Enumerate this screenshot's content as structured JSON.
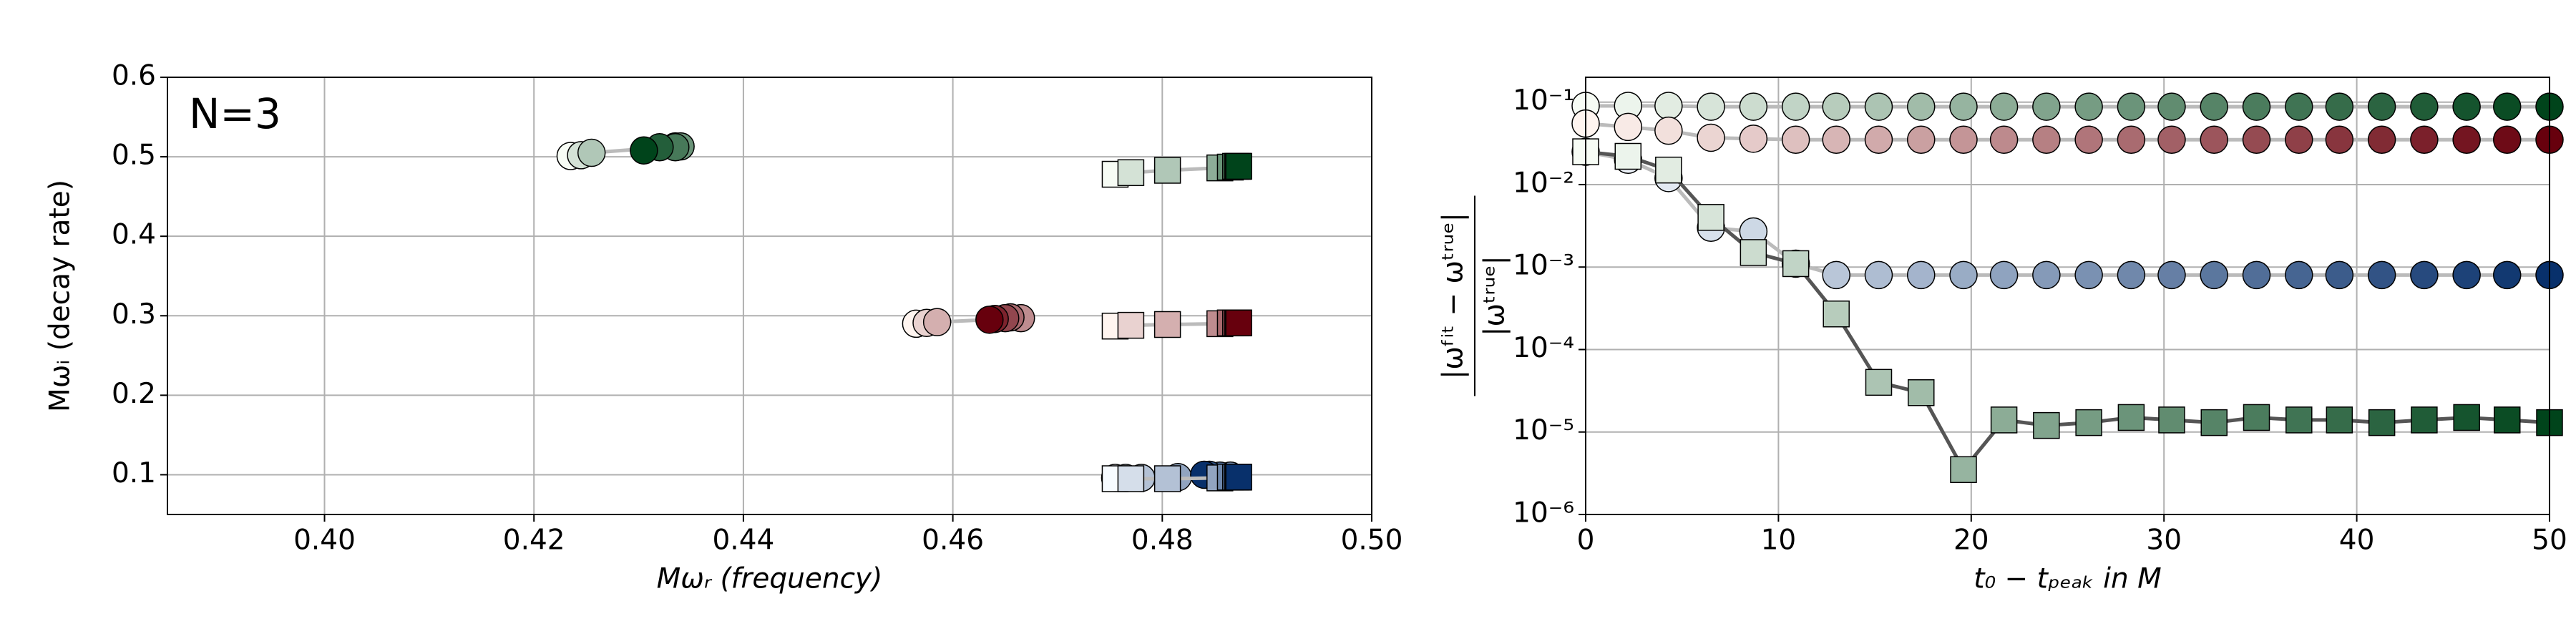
{
  "chart_data": [
    {
      "type": "scatter",
      "annotation": "N=3",
      "xlabel": "Mωᵣ (frequency)",
      "ylabel": "Mωᵢ (decay rate)",
      "xlim": [
        0.385,
        0.5
      ],
      "ylim": [
        0.05,
        0.6
      ],
      "xticks": [
        {
          "value": 0.4,
          "label": "0.40"
        },
        0.42,
        0.44,
        0.46,
        0.48,
        {
          "value": 0.5,
          "label": "0.50"
        }
      ],
      "yticks": [
        0.1,
        0.2,
        0.3,
        0.4,
        0.5,
        0.6
      ],
      "grid": true,
      "series": [
        {
          "marker": "circle",
          "colors": [
            "#f7fcf5",
            "#00441b"
          ],
          "line_color": "#bbbbbb",
          "x": [
            0.4235,
            0.4245,
            0.4255,
            0.4335,
            0.434,
            0.4335,
            0.432,
            0.4305
          ],
          "y": [
            0.501,
            0.502,
            0.505,
            0.513,
            0.513,
            0.512,
            0.512,
            0.508
          ]
        },
        {
          "marker": "circle",
          "colors": [
            "#fff5f0",
            "#67000d"
          ],
          "line_color": "#bbbbbb",
          "x": [
            0.4565,
            0.4575,
            0.4585,
            0.4665,
            0.4655,
            0.465,
            0.464,
            0.4635
          ],
          "y": [
            0.29,
            0.291,
            0.292,
            0.297,
            0.298,
            0.297,
            0.296,
            0.295
          ]
        },
        {
          "marker": "circle",
          "colors": [
            "#f7fbff",
            "#08306b"
          ],
          "line_color": "#bbbbbb",
          "x": [
            0.4755,
            0.4765,
            0.478,
            0.4815,
            0.4865,
            0.4855,
            0.4845,
            0.484
          ],
          "y": [
            0.096,
            0.096,
            0.096,
            0.097,
            0.099,
            0.099,
            0.1,
            0.1
          ]
        },
        {
          "marker": "square",
          "colors": [
            "#f7fcf5",
            "#00441b"
          ],
          "line_color": "#bbbbbb",
          "x": [
            0.4755,
            0.477,
            0.4805,
            0.4855,
            0.4865,
            0.487,
            0.4872,
            0.4873
          ],
          "y": [
            0.478,
            0.48,
            0.483,
            0.486,
            0.487,
            0.488,
            0.488,
            0.488
          ]
        },
        {
          "marker": "square",
          "colors": [
            "#fff5f0",
            "#67000d"
          ],
          "line_color": "#bbbbbb",
          "x": [
            0.4755,
            0.477,
            0.4805,
            0.4855,
            0.4865,
            0.487,
            0.4872,
            0.4873
          ],
          "y": [
            0.287,
            0.288,
            0.289,
            0.29,
            0.291,
            0.291,
            0.291,
            0.291
          ]
        },
        {
          "marker": "square",
          "colors": [
            "#f7fbff",
            "#08306b"
          ],
          "line_color": "#bbbbbb",
          "x": [
            0.4755,
            0.477,
            0.4805,
            0.4855,
            0.4865,
            0.487,
            0.4872,
            0.4873
          ],
          "y": [
            0.095,
            0.095,
            0.095,
            0.096,
            0.097,
            0.097,
            0.097,
            0.097
          ]
        }
      ]
    },
    {
      "type": "line",
      "xlabel": "t₀ − tₚₑₐₖ in M",
      "ylabel_numerator": "|ωᶠⁱᵗ − ωᵗʳᵘᵉ|",
      "ylabel_denominator": "|ωᵗʳᵘᵉ|",
      "xlim": [
        0,
        50
      ],
      "ylim": [
        1e-06,
        0.2
      ],
      "ylog": true,
      "xticks": [
        0,
        10,
        20,
        30,
        40,
        50
      ],
      "yticks": [
        {
          "value": 1e-06,
          "label": "10⁻⁶"
        },
        {
          "value": 1e-05,
          "label": "10⁻⁵"
        },
        {
          "value": 0.0001,
          "label": "10⁻⁴"
        },
        {
          "value": 0.001,
          "label": "10⁻³"
        },
        {
          "value": 0.01,
          "label": "10⁻²"
        },
        {
          "value": 0.1,
          "label": "10⁻¹"
        }
      ],
      "grid": true,
      "x": [
        0,
        2.2,
        4.3,
        6.5,
        8.7,
        10.9,
        13.0,
        15.2,
        17.4,
        19.6,
        21.7,
        23.9,
        26.1,
        28.3,
        30.4,
        32.6,
        34.8,
        37.0,
        39.1,
        41.3,
        43.5,
        45.7,
        47.8,
        50
      ],
      "series": [
        {
          "marker": "circle",
          "colors": [
            "#f7fcf5",
            "#00441b"
          ],
          "line_color": "#bbbbbb",
          "values": [
            0.09,
            0.09,
            0.09,
            0.088,
            0.088,
            0.088,
            0.088,
            0.088,
            0.088,
            0.088,
            0.088,
            0.088,
            0.088,
            0.088,
            0.088,
            0.088,
            0.088,
            0.088,
            0.088,
            0.088,
            0.088,
            0.088,
            0.088,
            0.088
          ]
        },
        {
          "marker": "circle",
          "colors": [
            "#fff5f0",
            "#67000d"
          ],
          "line_color": "#bbbbbb",
          "values": [
            0.055,
            0.05,
            0.045,
            0.037,
            0.036,
            0.035,
            0.035,
            0.035,
            0.035,
            0.035,
            0.035,
            0.035,
            0.035,
            0.035,
            0.035,
            0.035,
            0.035,
            0.035,
            0.035,
            0.035,
            0.035,
            0.035,
            0.035,
            0.035
          ]
        },
        {
          "marker": "circle",
          "colors": [
            "#f7fbff",
            "#08306b"
          ],
          "line_color": "#bbbbbb",
          "values": [
            0.025,
            0.02,
            0.012,
            0.003,
            0.0027,
            0.0011,
            0.0008,
            0.0008,
            0.0008,
            0.0008,
            0.0008,
            0.0008,
            0.0008,
            0.0008,
            0.0008,
            0.0008,
            0.0008,
            0.0008,
            0.0008,
            0.0008,
            0.0008,
            0.0008,
            0.0008,
            0.0008
          ]
        },
        {
          "marker": "square",
          "colors": [
            "#f7fcf5",
            "#00441b"
          ],
          "line_color": "#555555",
          "values": [
            0.025,
            0.022,
            0.015,
            0.004,
            0.0015,
            0.0011,
            0.00027,
            4e-05,
            3e-05,
            3.5e-06,
            1.4e-05,
            1.2e-05,
            1.3e-05,
            1.5e-05,
            1.4e-05,
            1.3e-05,
            1.5e-05,
            1.4e-05,
            1.4e-05,
            1.3e-05,
            1.4e-05,
            1.5e-05,
            1.4e-05,
            1.3e-05
          ]
        }
      ]
    }
  ]
}
